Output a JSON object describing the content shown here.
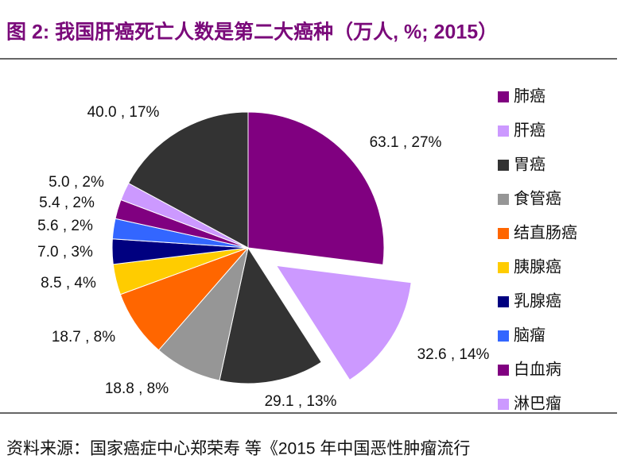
{
  "chart_data": {
    "type": "pie",
    "title": "图 2: 我国肝癌死亡人数是第二大癌种（万人, %; 2015）",
    "categories": [
      "肺癌",
      "肝癌",
      "胃癌",
      "食管癌",
      "结直肠癌",
      "胰腺癌",
      "乳腺癌",
      "脑瘤",
      "白血病",
      "淋巴瘤",
      null
    ],
    "values": [
      63.1,
      32.6,
      29.1,
      18.8,
      18.7,
      8.5,
      7.0,
      5.6,
      5.4,
      5.0,
      40.0
    ],
    "value_labels": [
      "63.1 , 27%",
      "32.6 , 14%",
      "29.1 , 13%",
      "18.8 , 8%",
      "18.7 , 8%",
      "8.5 , 4%",
      "7.0 , 3%",
      "5.6 , 2%",
      "5.4 , 2%",
      "5.0 , 2%",
      "40.0 , 17%"
    ],
    "colors": [
      "#800080",
      "#cc99ff",
      "#333333",
      "#969696",
      "#ff6600",
      "#ffcc00",
      "#000080",
      "#3366ff",
      "#800080",
      "#cc99ff",
      "#333333"
    ],
    "exploded": [
      1
    ],
    "legend": "right",
    "source": "资料来源：国家癌症中心郑荣寿 等《2015 年中国恶性肿瘤流行"
  }
}
